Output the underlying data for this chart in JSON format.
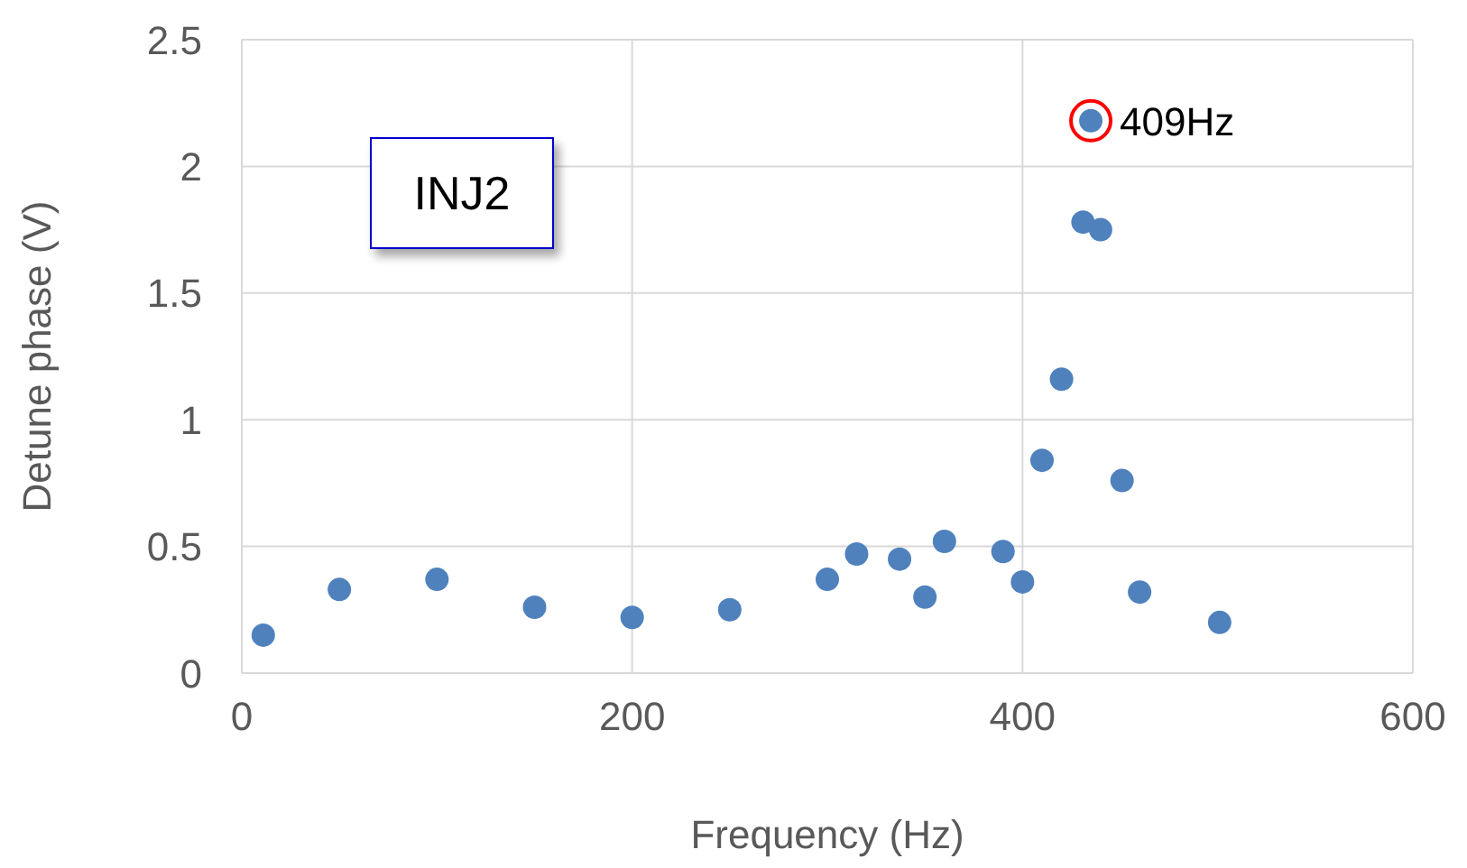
{
  "chart_data": {
    "type": "scatter",
    "xlabel": "Frequency (Hz)",
    "ylabel": "Detune phase (V)",
    "x": [
      11,
      50,
      100,
      150,
      200,
      250,
      300,
      315,
      337,
      350,
      360,
      390,
      400,
      410,
      420,
      431,
      435,
      440,
      451,
      460,
      501
    ],
    "series": [
      {
        "color": "#4f81bd",
        "values": [
          0.15,
          0.33,
          0.37,
          0.26,
          0.22,
          0.25,
          0.37,
          0.47,
          0.45,
          0.3,
          0.52,
          0.48,
          0.36,
          0.84,
          1.16,
          1.78,
          2.18,
          1.75,
          0.76,
          0.32,
          0.2
        ]
      }
    ],
    "xlim": [
      0,
      600
    ],
    "xticks": [
      0,
      200,
      400,
      600
    ],
    "ylim": [
      0,
      2.5
    ],
    "yticks": [
      0,
      0.5,
      1,
      1.5,
      2,
      2.5
    ],
    "grid": true,
    "marker": "circle",
    "annotations": [
      "INJ2",
      {
        "text": "409Hz",
        "x": 435,
        "y": 2.18
      }
    ]
  }
}
